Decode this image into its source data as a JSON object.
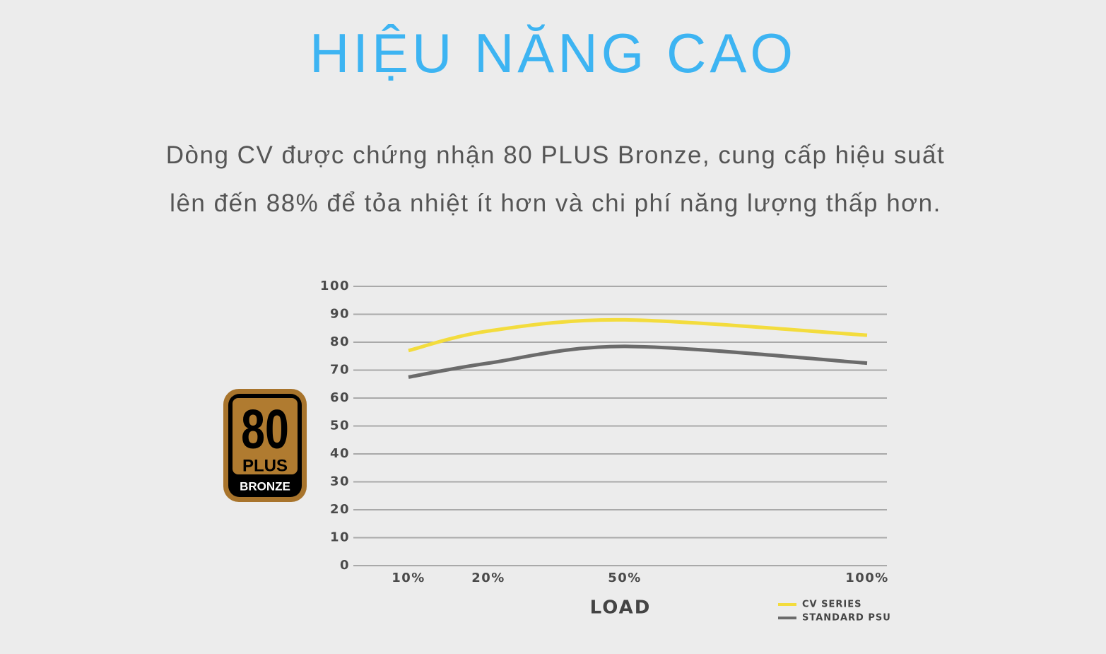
{
  "header": {
    "title": "HIỆU NĂNG CAO"
  },
  "description": [
    "Dòng CV được chứng nhận 80 PLUS Bronze, cung cấp hiệu suất",
    "lên đến 88% để tỏa nhiệt ít hơn và chi phí năng lượng thấp hơn."
  ],
  "badge": {
    "number": "80",
    "plus": "PLUS",
    "tier": "BRONZE"
  },
  "chart_data": {
    "type": "line",
    "x_label": "LOAD",
    "categories": [
      "10%",
      "20%",
      "50%",
      "100%"
    ],
    "series": [
      {
        "name": "CV SERIES",
        "color": "#f3dc3d",
        "values": [
          77,
          84,
          88,
          82.5
        ]
      },
      {
        "name": "STANDARD PSU",
        "color": "#6b6b6b",
        "values": [
          67.5,
          72.5,
          78.5,
          72.5
        ]
      }
    ],
    "ylim": [
      0,
      100
    ],
    "yticks": [
      0,
      10,
      20,
      30,
      40,
      50,
      60,
      70,
      80,
      90,
      100
    ],
    "grid": true
  }
}
